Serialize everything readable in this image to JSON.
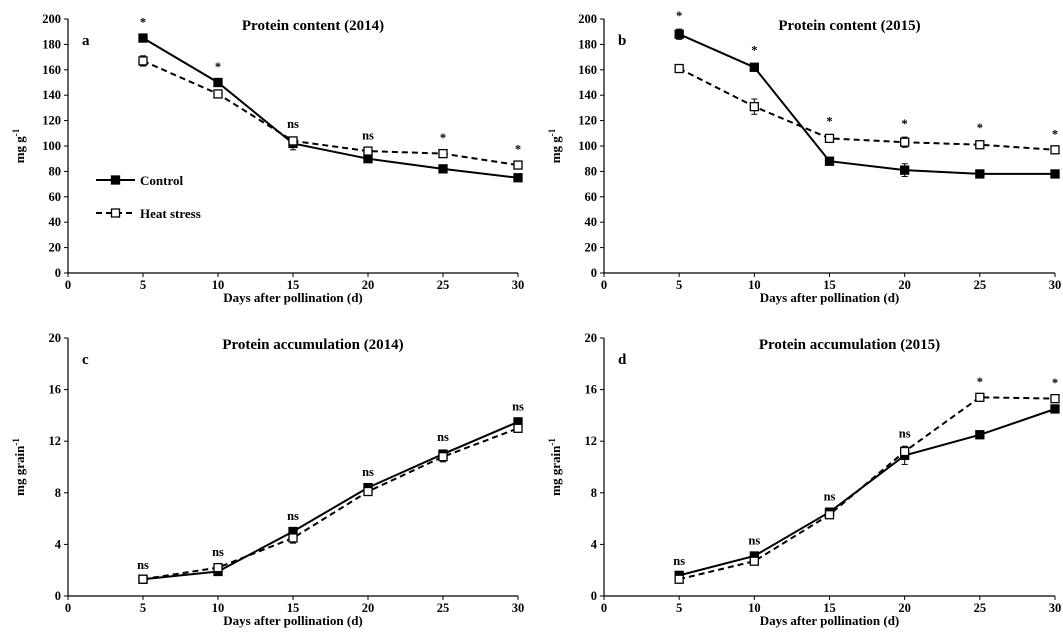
{
  "legend": {
    "control": "Control",
    "heat": "Heat stress"
  },
  "chart_data": [
    {
      "panel": "a",
      "type": "line",
      "title": "Protein content (2014)",
      "xlabel": "Days after pollination (d)",
      "ylabel": "mg g-1",
      "x": [
        5,
        10,
        15,
        20,
        25,
        30
      ],
      "xlim": [
        0,
        30
      ],
      "ylim": [
        0,
        200
      ],
      "xticks": [
        0,
        5,
        10,
        15,
        20,
        25,
        30
      ],
      "yticks": [
        0,
        20,
        40,
        60,
        80,
        100,
        120,
        140,
        160,
        180,
        200
      ],
      "grid": false,
      "legend_position": "left",
      "series": [
        {
          "name": "Control",
          "values": [
            185,
            150,
            102,
            90,
            82,
            75
          ],
          "errors": [
            2,
            2,
            5,
            3,
            2,
            2
          ]
        },
        {
          "name": "Heat stress",
          "values": [
            167,
            141,
            104,
            96,
            94,
            85
          ],
          "errors": [
            4,
            3,
            3,
            2,
            2,
            2
          ]
        }
      ],
      "annotations": [
        "*",
        "*",
        "ns",
        "ns",
        "*",
        "*"
      ]
    },
    {
      "panel": "b",
      "type": "line",
      "title": "Protein content (2015)",
      "xlabel": "Days after pollination (d)",
      "ylabel": "mg g-1",
      "x": [
        5,
        10,
        15,
        20,
        25,
        30
      ],
      "xlim": [
        0,
        30
      ],
      "ylim": [
        0,
        200
      ],
      "xticks": [
        0,
        5,
        10,
        15,
        20,
        25,
        30
      ],
      "yticks": [
        0,
        20,
        40,
        60,
        80,
        100,
        120,
        140,
        160,
        180,
        200
      ],
      "grid": false,
      "series": [
        {
          "name": "Control",
          "values": [
            188,
            162,
            88,
            81,
            78,
            78
          ],
          "errors": [
            4,
            3,
            3,
            5,
            2,
            2
          ]
        },
        {
          "name": "Heat stress",
          "values": [
            161,
            131,
            106,
            103,
            101,
            97
          ],
          "errors": [
            2,
            6,
            3,
            4,
            3,
            2
          ]
        }
      ],
      "annotations": [
        "*",
        "*",
        "*",
        "*",
        "*",
        "*"
      ]
    },
    {
      "panel": "c",
      "type": "line",
      "title": "Protein accumulation (2014)",
      "xlabel": "Days after pollination (d)",
      "ylabel": "mg grain-1",
      "x": [
        5,
        10,
        15,
        20,
        25,
        30
      ],
      "xlim": [
        0,
        30
      ],
      "ylim": [
        0,
        20
      ],
      "xticks": [
        0,
        5,
        10,
        15,
        20,
        25,
        30
      ],
      "yticks": [
        0,
        4,
        8,
        12,
        16,
        20
      ],
      "grid": false,
      "series": [
        {
          "name": "Control",
          "values": [
            1.3,
            1.9,
            5.0,
            8.4,
            11.0,
            13.5
          ],
          "errors": [
            0.1,
            0.1,
            0.2,
            0.2,
            0.3,
            0.2
          ]
        },
        {
          "name": "Heat stress",
          "values": [
            1.3,
            2.2,
            4.5,
            8.1,
            10.8,
            13.0
          ],
          "errors": [
            0.1,
            0.2,
            0.4,
            0.3,
            0.4,
            0.3
          ]
        }
      ],
      "annotations": [
        "ns",
        "ns",
        "ns",
        "ns",
        "ns",
        "ns"
      ]
    },
    {
      "panel": "d",
      "type": "line",
      "title": "Protein accumulation (2015)",
      "xlabel": "Days after pollination (d)",
      "ylabel": "mg grain-1",
      "x": [
        5,
        10,
        15,
        20,
        25,
        30
      ],
      "xlim": [
        0,
        30
      ],
      "ylim": [
        0,
        20
      ],
      "xticks": [
        0,
        5,
        10,
        15,
        20,
        25,
        30
      ],
      "yticks": [
        0,
        4,
        8,
        12,
        16,
        20
      ],
      "grid": false,
      "series": [
        {
          "name": "Control",
          "values": [
            1.6,
            3.1,
            6.5,
            10.9,
            12.5,
            14.5
          ],
          "errors": [
            0.1,
            0.2,
            0.2,
            0.7,
            0.2,
            0.2
          ]
        },
        {
          "name": "Heat stress",
          "values": [
            1.3,
            2.7,
            6.3,
            11.2,
            15.4,
            15.3
          ],
          "errors": [
            0.1,
            0.2,
            0.2,
            0.4,
            0.2,
            0.2
          ]
        }
      ],
      "annotations": [
        "ns",
        "ns",
        "ns",
        "ns",
        "*",
        "*"
      ]
    }
  ]
}
